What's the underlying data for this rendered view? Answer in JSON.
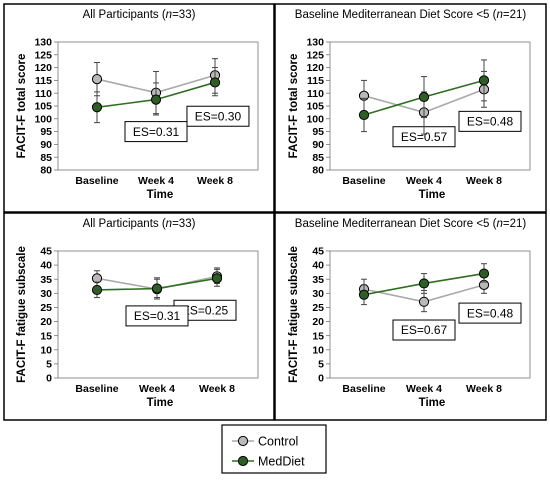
{
  "colors": {
    "control_fill": "#b9b9b9",
    "control_line": "#a9a9a9",
    "mediet_fill": "#2f5e24",
    "mediet_line": "#2e6f1f",
    "border": "#000000"
  },
  "legend": {
    "control_label": "Control",
    "mediet_label": "MedDiet"
  },
  "chart_data": [
    {
      "type": "line",
      "title_prefix": "All Participants (",
      "title_n": "n",
      "title_suffix": "=33)",
      "ylabel": "FACIT-F total score",
      "xlabel": "Time",
      "categories": [
        "Baseline",
        "Week 4",
        "Week 8"
      ],
      "ylim": [
        80,
        130
      ],
      "yticks": [
        80,
        85,
        90,
        95,
        100,
        105,
        110,
        115,
        120,
        125,
        130
      ],
      "series": [
        {
          "name": "Control",
          "values": [
            115.5,
            110.2,
            117.0
          ],
          "err_low": [
            109.0,
            102.0,
            110.0
          ],
          "err_high": [
            122.0,
            118.5,
            123.5
          ]
        },
        {
          "name": "MedDiet",
          "values": [
            104.5,
            107.5,
            114.2
          ],
          "err_low": [
            98.5,
            101.5,
            109.0
          ],
          "err_high": [
            110.5,
            114.0,
            120.0
          ]
        }
      ],
      "annotations": [
        {
          "text": "ES=0.30",
          "at": [
            2.05,
            101
          ]
        },
        {
          "text": "ES=0.31",
          "at": [
            1.0,
            95
          ]
        }
      ]
    },
    {
      "type": "line",
      "title_prefix": "Baseline Mediterranean Diet Score <5 (",
      "title_n": "n",
      "title_suffix": "=21)",
      "ylabel": "FACIT-F total score",
      "xlabel": "Time",
      "categories": [
        "Baseline",
        "Week 4",
        "Week 8"
      ],
      "ylim": [
        80,
        130
      ],
      "yticks": [
        80,
        85,
        90,
        95,
        100,
        105,
        110,
        115,
        120,
        125,
        130
      ],
      "series": [
        {
          "name": "Control",
          "values": [
            109.0,
            102.5,
            111.5
          ],
          "err_low": [
            103.0,
            94.0,
            104.5
          ],
          "err_high": [
            115.0,
            110.5,
            118.5
          ]
        },
        {
          "name": "MedDiet",
          "values": [
            101.5,
            108.5,
            115.0
          ],
          "err_low": [
            95.0,
            100.5,
            107.0
          ],
          "err_high": [
            108.0,
            116.5,
            123.0
          ]
        }
      ],
      "annotations": [
        {
          "text": "ES=0.48",
          "at": [
            2.1,
            99
          ]
        },
        {
          "text": "ES=0.57",
          "at": [
            1.0,
            93
          ]
        }
      ]
    },
    {
      "type": "line",
      "title_prefix": "All Participants (",
      "title_n": "n",
      "title_suffix": "=33)",
      "ylabel": "FACIT-F fatigue subscale",
      "xlabel": "Time",
      "categories": [
        "Baseline",
        "Week 4",
        "Week 8"
      ],
      "ylim": [
        0,
        45
      ],
      "yticks": [
        0,
        5,
        10,
        15,
        20,
        25,
        30,
        35,
        40,
        45
      ],
      "series": [
        {
          "name": "Control",
          "values": [
            35.3,
            31.5,
            36.0
          ],
          "err_low": [
            32.5,
            28.5,
            33.5
          ],
          "err_high": [
            38.0,
            35.0,
            39.0
          ]
        },
        {
          "name": "MedDiet",
          "values": [
            31.2,
            31.7,
            35.3
          ],
          "err_low": [
            28.5,
            28.0,
            32.5
          ],
          "err_high": [
            34.0,
            35.5,
            38.5
          ]
        }
      ],
      "annotations": [
        {
          "text": "ES=0.25",
          "at": [
            1.8,
            24
          ]
        },
        {
          "text": "ES=0.31",
          "at": [
            1.0,
            22
          ]
        }
      ]
    },
    {
      "type": "line",
      "title_prefix": "Baseline Mediterranean Diet Score <5 (",
      "title_n": "n",
      "title_suffix": "=21)",
      "ylabel": "FACIT-F fatigue subscale",
      "xlabel": "Time",
      "categories": [
        "Baseline",
        "Week 4",
        "Week 8"
      ],
      "ylim": [
        0,
        45
      ],
      "yticks": [
        0,
        5,
        10,
        15,
        20,
        25,
        30,
        35,
        40,
        45
      ],
      "series": [
        {
          "name": "Control",
          "values": [
            31.5,
            27.0,
            33.0
          ],
          "err_low": [
            28.5,
            23.5,
            30.0
          ],
          "err_high": [
            35.0,
            31.0,
            36.5
          ]
        },
        {
          "name": "MedDiet",
          "values": [
            29.5,
            33.5,
            37.0
          ],
          "err_low": [
            26.0,
            30.0,
            34.0
          ],
          "err_high": [
            33.0,
            37.0,
            40.5
          ]
        }
      ],
      "annotations": [
        {
          "text": "ES=0.48",
          "at": [
            2.1,
            23
          ]
        },
        {
          "text": "ES=0.67",
          "at": [
            1.0,
            17
          ]
        }
      ]
    }
  ]
}
